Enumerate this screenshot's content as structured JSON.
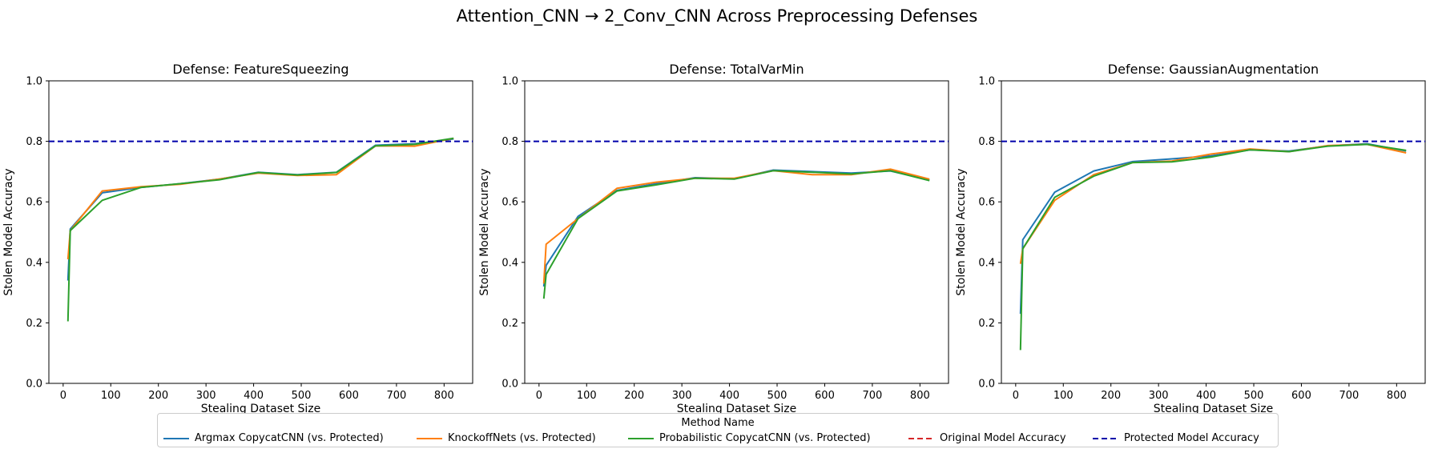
{
  "figure": {
    "suptitle": "Attention_CNN → 2_Conv_CNN Across Preprocessing Defenses",
    "legend_title": "Method Name",
    "legend_position": "bottom-center"
  },
  "legend": [
    {
      "label": "Argmax CopycatCNN (vs. Protected)",
      "color": "#1f77b4",
      "dash": "solid"
    },
    {
      "label": "KnockoffNets (vs. Protected)",
      "color": "#ff7f0e",
      "dash": "solid"
    },
    {
      "label": "Probabilistic CopycatCNN (vs. Protected)",
      "color": "#2ca02c",
      "dash": "solid"
    },
    {
      "label": "Original Model Accuracy",
      "color": "#d62728",
      "dash": "dashed"
    },
    {
      "label": "Protected Model Accuracy",
      "color": "#0000aa",
      "dash": "dashed"
    }
  ],
  "chart_data": [
    {
      "type": "line",
      "title": "Defense: FeatureSqueezing",
      "xlabel": "Stealing Dataset Size",
      "ylabel": "Stolen Model Accuracy",
      "xlim": [
        -30,
        860
      ],
      "ylim": [
        0,
        1.0
      ],
      "xticks": [
        0,
        100,
        200,
        300,
        400,
        500,
        600,
        700,
        800
      ],
      "yticks": [
        0.0,
        0.2,
        0.4,
        0.6,
        0.8,
        1.0
      ],
      "hlines": [
        {
          "name": "Protected Model Accuracy",
          "y": 0.8,
          "color": "#0000aa"
        }
      ],
      "series": [
        {
          "name": "Argmax CopycatCNN (vs. Protected)",
          "color": "#1f77b4",
          "x": [
            10,
            15,
            82,
            164,
            246,
            328,
            410,
            492,
            574,
            656,
            738,
            820
          ],
          "y": [
            0.34,
            0.51,
            0.63,
            0.648,
            0.66,
            0.675,
            0.698,
            0.69,
            0.698,
            0.787,
            0.792,
            0.808
          ]
        },
        {
          "name": "KnockoffNets (vs. Protected)",
          "color": "#ff7f0e",
          "x": [
            10,
            15,
            82,
            164,
            246,
            328,
            410,
            492,
            574,
            656,
            738,
            820
          ],
          "y": [
            0.41,
            0.505,
            0.636,
            0.65,
            0.658,
            0.675,
            0.695,
            0.687,
            0.69,
            0.785,
            0.784,
            0.81
          ]
        },
        {
          "name": "Probabilistic CopycatCNN (vs. Protected)",
          "color": "#2ca02c",
          "x": [
            10,
            15,
            82,
            164,
            246,
            328,
            410,
            492,
            574,
            656,
            738,
            820
          ],
          "y": [
            0.205,
            0.505,
            0.605,
            0.648,
            0.66,
            0.673,
            0.697,
            0.689,
            0.697,
            0.785,
            0.79,
            0.81
          ]
        }
      ]
    },
    {
      "type": "line",
      "title": "Defense: TotalVarMin",
      "xlabel": "Stealing Dataset Size",
      "ylabel": "Stolen Model Accuracy",
      "xlim": [
        -30,
        860
      ],
      "ylim": [
        0,
        1.0
      ],
      "xticks": [
        0,
        100,
        200,
        300,
        400,
        500,
        600,
        700,
        800
      ],
      "yticks": [
        0.0,
        0.2,
        0.4,
        0.6,
        0.8,
        1.0
      ],
      "hlines": [
        {
          "name": "Protected Model Accuracy",
          "y": 0.8,
          "color": "#0000aa"
        }
      ],
      "series": [
        {
          "name": "Argmax CopycatCNN (vs. Protected)",
          "color": "#1f77b4",
          "x": [
            10,
            15,
            82,
            164,
            246,
            328,
            410,
            492,
            574,
            656,
            738,
            820
          ],
          "y": [
            0.32,
            0.39,
            0.552,
            0.638,
            0.66,
            0.68,
            0.676,
            0.705,
            0.7,
            0.695,
            0.702,
            0.672
          ]
        },
        {
          "name": "KnockoffNets (vs. Protected)",
          "color": "#ff7f0e",
          "x": [
            10,
            15,
            82,
            164,
            246,
            328,
            410,
            492,
            574,
            656,
            738,
            820
          ],
          "y": [
            0.33,
            0.46,
            0.545,
            0.645,
            0.665,
            0.678,
            0.678,
            0.703,
            0.69,
            0.69,
            0.708,
            0.675
          ]
        },
        {
          "name": "Probabilistic CopycatCNN (vs. Protected)",
          "color": "#2ca02c",
          "x": [
            10,
            15,
            82,
            164,
            246,
            328,
            410,
            492,
            574,
            656,
            738,
            820
          ],
          "y": [
            0.28,
            0.36,
            0.545,
            0.636,
            0.656,
            0.678,
            0.675,
            0.703,
            0.698,
            0.692,
            0.703,
            0.67
          ]
        }
      ]
    },
    {
      "type": "line",
      "title": "Defense: GaussianAugmentation",
      "xlabel": "Stealing Dataset Size",
      "ylabel": "Stolen Model Accuracy",
      "xlim": [
        -30,
        860
      ],
      "ylim": [
        0,
        1.0
      ],
      "xticks": [
        0,
        100,
        200,
        300,
        400,
        500,
        600,
        700,
        800
      ],
      "yticks": [
        0.0,
        0.2,
        0.4,
        0.6,
        0.8,
        1.0
      ],
      "hlines": [
        {
          "name": "Protected Model Accuracy",
          "y": 0.8,
          "color": "#0000aa"
        }
      ],
      "series": [
        {
          "name": "Argmax CopycatCNN (vs. Protected)",
          "color": "#1f77b4",
          "x": [
            10,
            15,
            82,
            164,
            246,
            328,
            410,
            492,
            574,
            656,
            738,
            820
          ],
          "y": [
            0.23,
            0.475,
            0.632,
            0.702,
            0.733,
            0.742,
            0.752,
            0.772,
            0.768,
            0.785,
            0.792,
            0.768
          ]
        },
        {
          "name": "KnockoffNets (vs. Protected)",
          "color": "#ff7f0e",
          "x": [
            10,
            15,
            82,
            164,
            246,
            328,
            410,
            492,
            574,
            656,
            738,
            820
          ],
          "y": [
            0.395,
            0.445,
            0.605,
            0.69,
            0.73,
            0.735,
            0.758,
            0.775,
            0.766,
            0.786,
            0.79,
            0.762
          ]
        },
        {
          "name": "Probabilistic CopycatCNN (vs. Protected)",
          "color": "#2ca02c",
          "x": [
            10,
            15,
            82,
            164,
            246,
            328,
            410,
            492,
            574,
            656,
            738,
            820
          ],
          "y": [
            0.11,
            0.445,
            0.615,
            0.685,
            0.73,
            0.732,
            0.748,
            0.772,
            0.766,
            0.784,
            0.79,
            0.77
          ]
        }
      ]
    }
  ]
}
